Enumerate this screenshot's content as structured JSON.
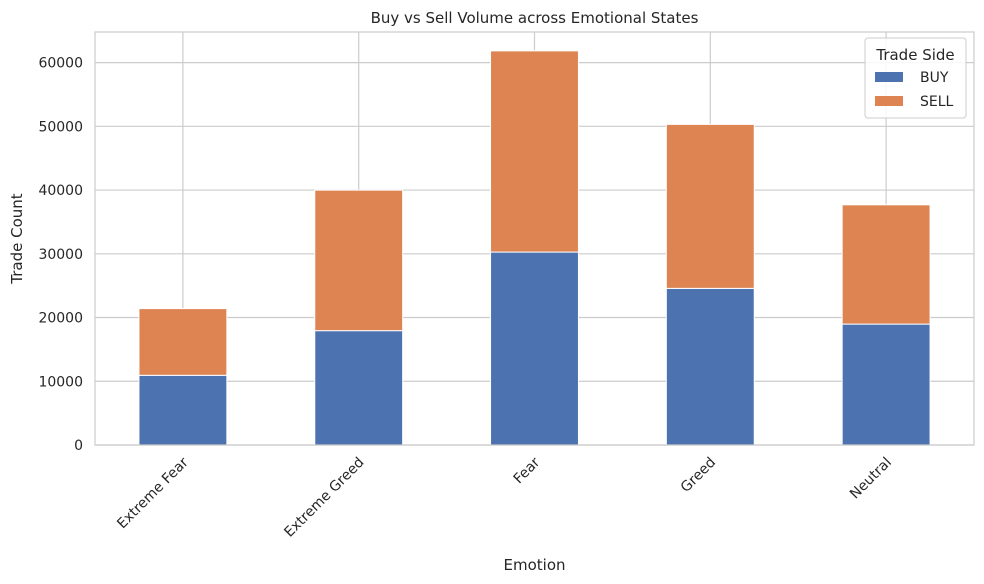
{
  "chart_data": {
    "type": "bar",
    "stacked": true,
    "title": "Buy vs Sell Volume across Emotional States",
    "xlabel": "Emotion",
    "ylabel": "Trade Count",
    "categories": [
      "Extreme Fear",
      "Extreme Greed",
      "Fear",
      "Greed",
      "Neutral"
    ],
    "series": [
      {
        "name": "BUY",
        "color": "#4c72b0",
        "values": [
          10935,
          17940,
          30270,
          24576,
          18969
        ]
      },
      {
        "name": "SELL",
        "color": "#dd8452",
        "values": [
          10465,
          22045,
          31567,
          25727,
          18717
        ]
      }
    ],
    "ylim": [
      0,
      64800
    ],
    "yticks": [
      0,
      10000,
      20000,
      30000,
      40000,
      50000,
      60000
    ],
    "grid": true,
    "legend": {
      "title": "Trade Side",
      "position": "top-right"
    }
  }
}
